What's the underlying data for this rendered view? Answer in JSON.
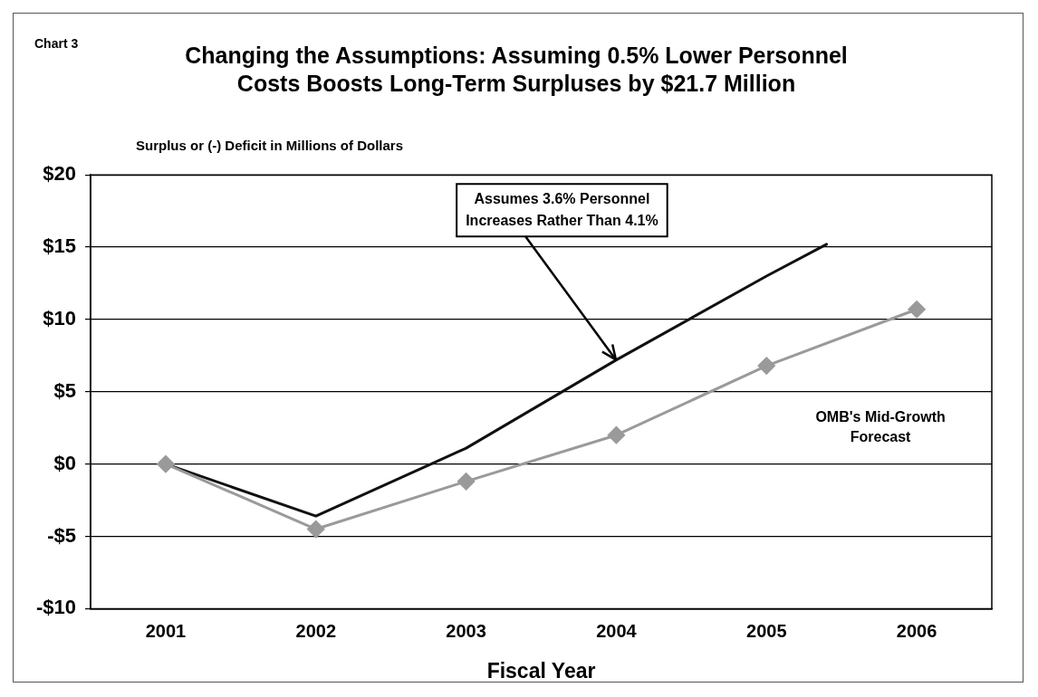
{
  "chart_data": {
    "type": "line",
    "title": "Changing the Assumptions: Assuming 0.5% Lower Personnel Costs Boosts Long-Term Surpluses by $21.7 Million",
    "ylabel": "Surplus or (-) Deficit in Millions of Dollars",
    "xlabel": "Fiscal Year",
    "xlim": [
      2000.5,
      2006.5
    ],
    "xticks": [
      2001,
      2002,
      2003,
      2004,
      2005,
      2006
    ],
    "ylim": [
      -10,
      20
    ],
    "yticks": [
      {
        "value": -10,
        "label": "-$10"
      },
      {
        "value": -5,
        "label": "-$5"
      },
      {
        "value": 0,
        "label": "$0"
      },
      {
        "value": 5,
        "label": "$5"
      },
      {
        "value": 10,
        "label": "$10"
      },
      {
        "value": 15,
        "label": "$15"
      },
      {
        "value": 20,
        "label": "$20"
      }
    ],
    "grid": "y",
    "series": [
      {
        "color": "#9a9a9a",
        "marker": "diamond",
        "name": "OMB's Mid-Growth Forecast",
        "x": [
          2001,
          2002,
          2003,
          2004,
          2005,
          2006
        ],
        "values": [
          0,
          -4.5,
          -1.2,
          2.0,
          6.8,
          10.7
        ]
      },
      {
        "color": "#111111",
        "marker": "none",
        "x": [
          2001,
          2002,
          2003,
          2004,
          2005,
          2005.4
        ],
        "values": [
          0,
          -3.6,
          1.1,
          7.2,
          13.0,
          15.2
        ]
      }
    ],
    "annotations": [
      "Chart 3",
      {
        "text": "Assumes 3.6% Personnel Increases Rather Than 4.1%",
        "x": 2004,
        "y": 7.2
      }
    ]
  }
}
